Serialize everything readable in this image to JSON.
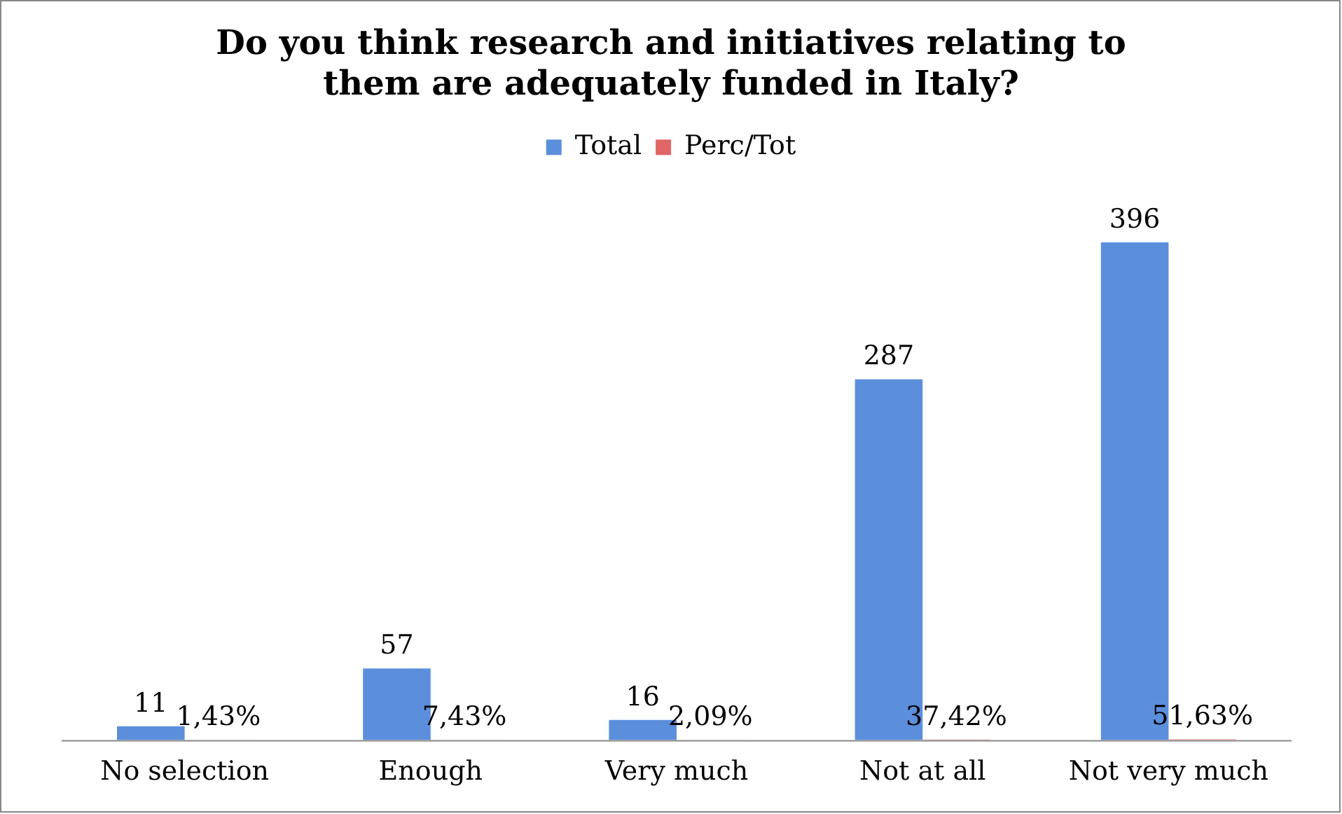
{
  "chart_data": {
    "type": "bar",
    "title": "Do you think research and initiatives relating to them are adequately funded in Italy?",
    "categories": [
      "No selection",
      "Enough",
      "Very much",
      "Not at all",
      "Not very much"
    ],
    "relative": false,
    "legend": "top",
    "grid": false,
    "series": [
      {
        "name": "Total",
        "color": "#5b8fdc",
        "values": [
          11,
          57,
          16,
          287,
          396
        ],
        "value_labels": [
          "11",
          "57",
          "16",
          "287",
          "396"
        ]
      },
      {
        "name": "Perc/Tot",
        "color": "#e06666",
        "values": [
          0.0143,
          0.0743,
          0.0209,
          0.3742,
          0.5163
        ],
        "value_labels": [
          "1,43%",
          "7,43%",
          "2,09%",
          "37,42%",
          "51,63%"
        ]
      }
    ]
  }
}
